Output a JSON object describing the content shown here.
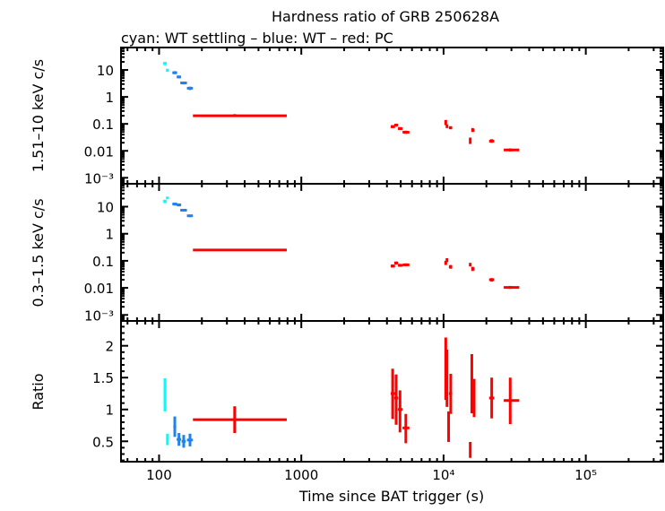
{
  "chart_data": [
    {
      "type": "scatter",
      "title": "Hardness ratio of GRB 250628A",
      "subtitle": "cyan: WT settling – blue: WT – red: PC",
      "ylabel": "1.51–10 keV c/s",
      "xscale": "log",
      "yscale": "log",
      "xlim": [
        54,
        350000
      ],
      "ylim": [
        0.0006,
        68
      ],
      "yticks": [
        "10",
        "1",
        "0.1",
        "0.01",
        "10⁻³"
      ],
      "point_format": [
        "t",
        "t_lo",
        "t_hi",
        "value",
        "value_lo",
        "value_hi"
      ],
      "series": [
        {
          "color": "#00ffff",
          "points": [
            [
              110,
              107,
              113,
              17.5,
              15,
              20
            ],
            [
              114.5,
              112,
              117,
              9.8,
              8.5,
              11
            ]
          ]
        },
        {
          "color": "#1e82f0",
          "points": [
            [
              129,
              124,
              134,
              7.9,
              7,
              9
            ],
            [
              138,
              133,
              143,
              5.5,
              4.9,
              6.2
            ],
            [
              149,
              141,
              157,
              3.3,
              2.9,
              3.7
            ],
            [
              165,
              157,
              173,
              2.1,
              1.8,
              2.4
            ]
          ]
        },
        {
          "color": "#ff0000",
          "points": [
            [
              340,
              173,
              790,
              0.2,
              0.18,
              0.23
            ],
            [
              4385,
              4250,
              4560,
              0.079,
              0.07,
              0.09
            ],
            [
              4640,
              4500,
              4800,
              0.09,
              0.08,
              0.1
            ],
            [
              4940,
              4780,
              5150,
              0.067,
              0.059,
              0.076
            ],
            [
              5430,
              5150,
              5750,
              0.049,
              0.043,
              0.056
            ],
            [
              10360,
              10150,
              10500,
              0.11,
              0.09,
              0.14
            ],
            [
              10570,
              10400,
              10750,
              0.081,
              0.07,
              0.095
            ],
            [
              11230,
              10900,
              11500,
              0.072,
              0.063,
              0.082
            ],
            [
              16000,
              15700,
              16500,
              0.058,
              0.05,
              0.07
            ],
            [
              15400,
              15300,
              15550,
              0.024,
              0.018,
              0.031
            ],
            [
              21800,
              20900,
              22700,
              0.023,
              0.02,
              0.027
            ],
            [
              29400,
              26500,
              34000,
              0.0108,
              0.0095,
              0.0123
            ]
          ]
        }
      ]
    },
    {
      "type": "scatter",
      "ylabel": "0.3–1.5 keV c/s",
      "xscale": "log",
      "yscale": "log",
      "xlim": [
        54,
        350000
      ],
      "ylim": [
        0.0006,
        70
      ],
      "yticks": [
        "10",
        "1",
        "0.1",
        "0.01",
        "10⁻³"
      ],
      "point_format": [
        "t",
        "t_lo",
        "t_hi",
        "value",
        "value_lo",
        "value_hi"
      ],
      "series": [
        {
          "color": "#00ffff",
          "points": [
            [
              110,
              107,
              113,
              15.7,
              13.5,
              18
            ],
            [
              114.5,
              112,
              117,
              21,
              19,
              23
            ]
          ]
        },
        {
          "color": "#1e82f0",
          "points": [
            [
              129,
              124,
              134,
              12.5,
              11,
              14
            ],
            [
              138,
              133,
              143,
              11.6,
              10.3,
              13
            ],
            [
              149,
              141,
              157,
              7.4,
              6.6,
              8.2
            ],
            [
              165,
              157,
              173,
              4.6,
              4.1,
              5.1
            ]
          ]
        },
        {
          "color": "#ff0000",
          "points": [
            [
              340,
              173,
              790,
              0.25,
              0.23,
              0.27
            ],
            [
              4385,
              4250,
              4560,
              0.064,
              0.056,
              0.073
            ],
            [
              4640,
              4500,
              4800,
              0.083,
              0.073,
              0.094
            ],
            [
              4940,
              4780,
              5150,
              0.068,
              0.06,
              0.077
            ],
            [
              5430,
              5150,
              5750,
              0.071,
              0.063,
              0.08
            ],
            [
              10360,
              10150,
              10500,
              0.083,
              0.07,
              0.1
            ],
            [
              10570,
              10400,
              10750,
              0.105,
              0.09,
              0.125
            ],
            [
              11230,
              10900,
              11500,
              0.06,
              0.051,
              0.07
            ],
            [
              15400,
              15300,
              15550,
              0.072,
              0.062,
              0.084
            ],
            [
              16000,
              15700,
              16500,
              0.05,
              0.042,
              0.06
            ],
            [
              21800,
              20900,
              22700,
              0.02,
              0.017,
              0.023
            ],
            [
              29400,
              26500,
              34000,
              0.0104,
              0.0092,
              0.0118
            ]
          ]
        }
      ]
    },
    {
      "type": "scatter",
      "ylabel": "Ratio",
      "xlabel": "Time since BAT trigger (s)",
      "xscale": "log",
      "yscale": "linear",
      "xlim": [
        54,
        350000
      ],
      "ylim": [
        0.18,
        2.39
      ],
      "yticks": [
        "0.5",
        "1",
        "1.5",
        "2"
      ],
      "xticks": [
        "100",
        "1000",
        "10⁴",
        "10⁵"
      ],
      "point_format": [
        "t",
        "t_lo",
        "t_hi",
        "value",
        "value_lo",
        "value_hi"
      ],
      "series": [
        {
          "color": "#00ffff",
          "points": [
            [
              110,
              108,
              112,
              1.24,
              0.97,
              1.49
            ],
            [
              114.5,
              112,
              117,
              0.54,
              0.44,
              0.62
            ]
          ]
        },
        {
          "color": "#1e82f0",
          "points": [
            [
              129,
              126,
              132,
              0.73,
              0.57,
              0.89
            ],
            [
              138,
              133,
              143,
              0.53,
              0.43,
              0.63
            ],
            [
              149,
              144,
              154,
              0.5,
              0.4,
              0.6
            ],
            [
              165,
              157,
              173,
              0.52,
              0.42,
              0.62
            ]
          ]
        },
        {
          "color": "#ff0000",
          "points": [
            [
              340,
              173,
              790,
              0.84,
              0.63,
              1.05
            ],
            [
              4385,
              4250,
              4560,
              1.25,
              0.85,
              1.64
            ],
            [
              4640,
              4500,
              4800,
              1.18,
              0.76,
              1.55
            ],
            [
              4940,
              4780,
              5150,
              1.0,
              0.64,
              1.3
            ],
            [
              5430,
              5150,
              5750,
              0.71,
              0.47,
              0.93
            ],
            [
              10360,
              10200,
              10450,
              1.64,
              1.15,
              2.13
            ],
            [
              10570,
              10450,
              10700,
              1.25,
              1.04,
              1.94
            ],
            [
              10850,
              10750,
              10950,
              0.73,
              0.49,
              0.97
            ],
            [
              11230,
              10900,
              11500,
              1.25,
              0.93,
              1.56
            ],
            [
              15400,
              15250,
              15550,
              0.36,
              0.24,
              0.49
            ],
            [
              15800,
              15650,
              16000,
              1.14,
              0.94,
              1.87
            ],
            [
              16400,
              16200,
              16600,
              1.14,
              0.88,
              1.48
            ],
            [
              21800,
              20900,
              22700,
              1.18,
              0.86,
              1.5
            ],
            [
              29400,
              26500,
              34000,
              1.14,
              0.77,
              1.5
            ]
          ]
        }
      ]
    }
  ]
}
